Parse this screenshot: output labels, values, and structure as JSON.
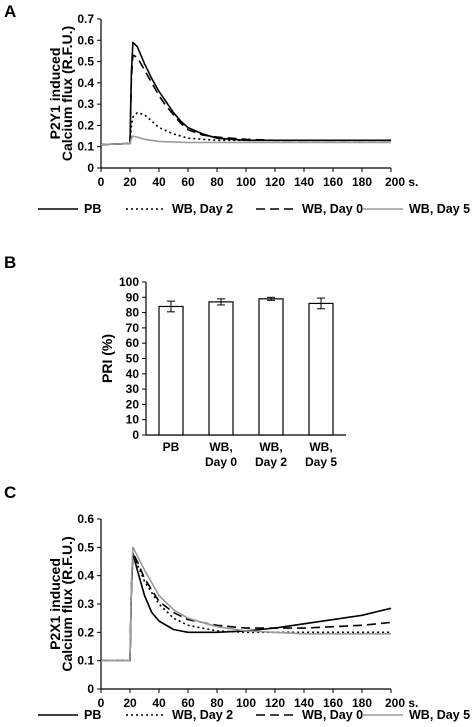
{
  "panels": [
    {
      "label": "A",
      "chart_data": {
        "type": "line",
        "ylabel_lines": [
          "P2Y1 induced",
          "Calcium flux (R.F.U.)"
        ],
        "xlabel": "",
        "xticks": [
          "0",
          "20",
          "40",
          "60",
          "80",
          "100",
          "120",
          "140",
          "160",
          "180",
          "200 s."
        ],
        "yticks": [
          "0",
          "0.1",
          "0.2",
          "0.3",
          "0.4",
          "0.5",
          "0.6",
          "0.7"
        ],
        "xlim": [
          0,
          200
        ],
        "ylim": [
          0,
          0.7
        ],
        "grid": false,
        "legend_position": "bottom",
        "series": [
          {
            "name": "PB",
            "color": "#000000",
            "dash": "solid",
            "x": [
              0,
              20,
              21,
              22,
              25,
              30,
              35,
              40,
              45,
              50,
              55,
              60,
              70,
              80,
              90,
              100,
              120,
              140,
              160,
              180,
              200
            ],
            "y": [
              0.11,
              0.115,
              0.45,
              0.59,
              0.57,
              0.49,
              0.42,
              0.36,
              0.31,
              0.26,
              0.22,
              0.19,
              0.16,
              0.14,
              0.135,
              0.13,
              0.13,
              0.13,
              0.13,
              0.13,
              0.13
            ]
          },
          {
            "name": "WB, Day 2",
            "color": "#000000",
            "dash": "dotted",
            "x": [
              0,
              20,
              21,
              22,
              25,
              30,
              35,
              40,
              50,
              60,
              70,
              80,
              100,
              140,
              200
            ],
            "y": [
              0.11,
              0.115,
              0.2,
              0.24,
              0.26,
              0.25,
              0.22,
              0.19,
              0.16,
              0.14,
              0.135,
              0.13,
              0.13,
              0.13,
              0.13
            ]
          },
          {
            "name": "WB, Day 0",
            "color": "#000000",
            "dash": "dashed",
            "x": [
              0,
              20,
              21,
              22,
              25,
              30,
              35,
              40,
              45,
              50,
              55,
              60,
              70,
              80,
              90,
              100,
              120,
              140,
              160,
              180,
              200
            ],
            "y": [
              0.11,
              0.115,
              0.42,
              0.53,
              0.52,
              0.46,
              0.4,
              0.34,
              0.29,
              0.25,
              0.21,
              0.18,
              0.155,
              0.145,
              0.14,
              0.135,
              0.13,
              0.13,
              0.13,
              0.13,
              0.13
            ]
          },
          {
            "name": "WB, Day 5",
            "color": "#999999",
            "dash": "solid",
            "x": [
              0,
              20,
              21,
              22,
              25,
              30,
              40,
              60,
              80,
              100,
              120,
              140,
              160,
              180,
              200
            ],
            "y": [
              0.11,
              0.115,
              0.14,
              0.15,
              0.145,
              0.135,
              0.125,
              0.12,
              0.12,
              0.12,
              0.12,
              0.12,
              0.12,
              0.12,
              0.12
            ]
          }
        ]
      }
    },
    {
      "label": "B",
      "chart_data": {
        "type": "bar",
        "ylabel": "PRI (%)",
        "categories": [
          [
            "PB"
          ],
          [
            "WB,",
            "Day 0"
          ],
          [
            "WB,",
            "Day 2"
          ],
          [
            "WB,",
            "Day 5"
          ]
        ],
        "values": [
          84,
          87,
          89,
          86
        ],
        "errors": [
          3.5,
          2,
          1,
          3.5
        ],
        "yticks": [
          "0",
          "10",
          "20",
          "30",
          "40",
          "50",
          "60",
          "70",
          "80",
          "90",
          "100"
        ],
        "ylim": [
          0,
          100
        ],
        "grid": false
      }
    },
    {
      "label": "C",
      "chart_data": {
        "type": "line",
        "ylabel_lines": [
          "P2X1 induced",
          "Calcium flux (R.F.U.)"
        ],
        "xlabel": "",
        "xticks": [
          "0",
          "20",
          "40",
          "60",
          "80",
          "100",
          "120",
          "140",
          "160",
          "180",
          "200 s."
        ],
        "yticks": [
          "0",
          "0.1",
          "0.2",
          "0.3",
          "0.4",
          "0.5",
          "0.6"
        ],
        "xlim": [
          0,
          200
        ],
        "ylim": [
          0,
          0.6
        ],
        "grid": false,
        "legend_position": "bottom",
        "series": [
          {
            "name": "PB",
            "color": "#000000",
            "dash": "solid",
            "x": [
              0,
              20,
              21,
              22,
              25,
              30,
              35,
              40,
              50,
              60,
              70,
              80,
              100,
              120,
              140,
              160,
              180,
              200
            ],
            "y": [
              0.1,
              0.1,
              0.35,
              0.48,
              0.42,
              0.33,
              0.27,
              0.24,
              0.21,
              0.2,
              0.2,
              0.2,
              0.205,
              0.215,
              0.23,
              0.245,
              0.26,
              0.285
            ]
          },
          {
            "name": "WB, Day 2",
            "color": "#000000",
            "dash": "dotted",
            "x": [
              0,
              20,
              21,
              22,
              25,
              30,
              40,
              50,
              60,
              80,
              100,
              120,
              140,
              160,
              180,
              200
            ],
            "y": [
              0.1,
              0.1,
              0.35,
              0.47,
              0.44,
              0.38,
              0.3,
              0.25,
              0.225,
              0.205,
              0.2,
              0.2,
              0.2,
              0.2,
              0.2,
              0.2
            ]
          },
          {
            "name": "WB, Day 0",
            "color": "#000000",
            "dash": "dashed",
            "x": [
              0,
              20,
              21,
              22,
              25,
              30,
              40,
              50,
              60,
              80,
              100,
              120,
              140,
              160,
              180,
              200
            ],
            "y": [
              0.1,
              0.1,
              0.36,
              0.48,
              0.45,
              0.39,
              0.31,
              0.27,
              0.245,
              0.225,
              0.215,
              0.215,
              0.215,
              0.22,
              0.225,
              0.235
            ]
          },
          {
            "name": "WB, Day 5",
            "color": "#999999",
            "dash": "solid",
            "x": [
              0,
              20,
              21,
              22,
              25,
              30,
              40,
              50,
              60,
              80,
              100,
              120,
              140,
              160,
              180,
              200
            ],
            "y": [
              0.1,
              0.1,
              0.37,
              0.5,
              0.47,
              0.42,
              0.33,
              0.28,
              0.25,
              0.22,
              0.205,
              0.2,
              0.195,
              0.195,
              0.195,
              0.195
            ]
          }
        ]
      }
    }
  ]
}
